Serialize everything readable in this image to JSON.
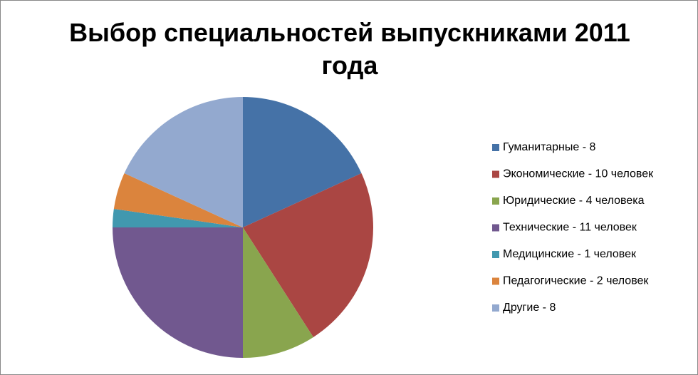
{
  "chart_data": {
    "type": "pie",
    "title": "Выбор специальностей выпускниками 2011 года",
    "categories": [
      "Гуманитарные - 8",
      "Экономические - 10 человек",
      "Юридические - 4 человека",
      "Технические - 11 человек",
      "Медицинские - 1 человек",
      "Педагогические - 2 человек",
      "Другие - 8"
    ],
    "values": [
      8,
      10,
      4,
      11,
      1,
      2,
      8
    ],
    "colors": [
      "#4572a7",
      "#aa4643",
      "#89a54e",
      "#71588f",
      "#4198af",
      "#db843d",
      "#93a9cf"
    ],
    "legend": "right"
  }
}
